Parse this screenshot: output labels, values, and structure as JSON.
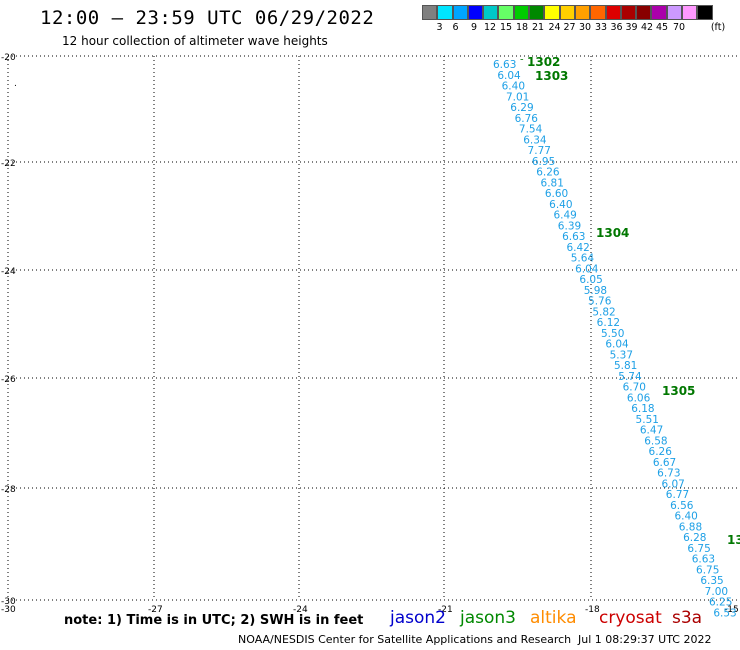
{
  "header": {
    "title": "12:00 — 23:59 UTC 06/29/2022",
    "subtitle": "12 hour collection of altimeter wave heights"
  },
  "color_scale": {
    "unit": "(ft)",
    "colors": [
      "#808080",
      "#00e5ff",
      "#00a5ff",
      "#0000ff",
      "#00c8c8",
      "#66ff66",
      "#00cc00",
      "#008800",
      "#ffff00",
      "#ffd000",
      "#ffa000",
      "#ff6600",
      "#dd0000",
      "#aa0000",
      "#880000",
      "#aa00aa",
      "#cc99ff",
      "#ff99ff",
      "#000000"
    ],
    "labels": [
      "3",
      "6",
      "9",
      "12",
      "15",
      "18",
      "21",
      "24",
      "27",
      "30",
      "33",
      "36",
      "39",
      "42",
      "45",
      "70"
    ]
  },
  "axes": {
    "lat_labels": [
      "-20",
      "-22",
      "-24",
      "-26",
      "-28",
      "-30"
    ],
    "lon_labels": [
      "-27",
      "-24",
      "-21",
      "-18",
      "-15"
    ],
    "corner_label": "-30"
  },
  "track": {
    "color": "#1ea0e6",
    "values": [
      "6.63",
      "6.04",
      "6.40",
      "7.01",
      "6.29",
      "6.76",
      "7.54",
      "6.34",
      "7.77",
      "6.95",
      "6.26",
      "6.81",
      "6.60",
      "6.40",
      "6.49",
      "6.39",
      "6.63",
      "6.42",
      "5.64",
      "6.04",
      "6.05",
      "5.98",
      "5.76",
      "5.82",
      "6.12",
      "5.50",
      "6.04",
      "5.37",
      "5.81",
      "5.74",
      "6.70",
      "6.06",
      "6.18",
      "5.51",
      "6.47",
      "6.58",
      "6.26",
      "6.67",
      "6.73",
      "6.07",
      "6.77",
      "6.56",
      "6.40",
      "6.88",
      "6.28",
      "6.75",
      "6.63",
      "6.75",
      "6.35",
      "7.00",
      "6.25",
      "6.53"
    ]
  },
  "time_labels": {
    "color": "#007700",
    "items": [
      "1302",
      "1303",
      "1304",
      "1305",
      "13"
    ]
  },
  "footer": {
    "note": "note:  1) Time is in UTC;  2) SWH is in feet",
    "satellites": [
      {
        "name": "jason2",
        "color": "#0000cc"
      },
      {
        "name": "jason3",
        "color": "#008800"
      },
      {
        "name": "altika",
        "color": "#ff8c00"
      },
      {
        "name": "cryosat",
        "color": "#cc0000"
      },
      {
        "name": "s3a",
        "color": "#aa0000"
      }
    ],
    "credit": "NOAA/NESDIS Center for Satellite Applications and Research",
    "timestamp": "Jul  1 08:29:37 UTC 2022"
  }
}
